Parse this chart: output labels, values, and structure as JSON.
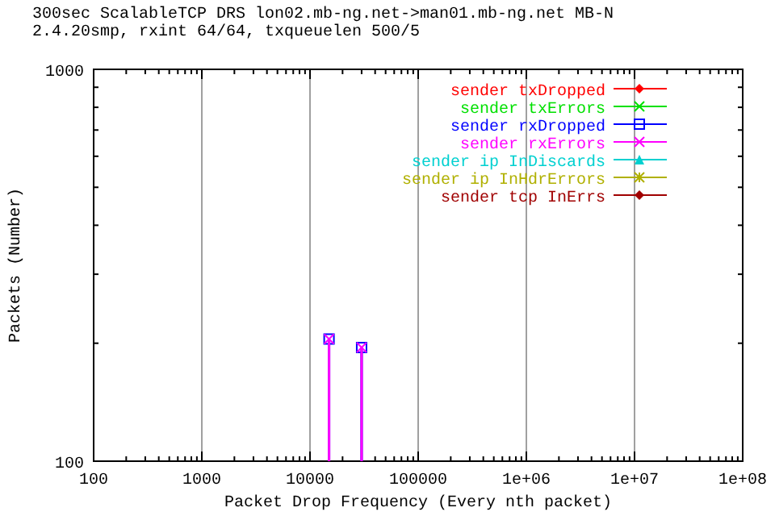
{
  "chart_data": {
    "type": "lollipop",
    "title": "300sec ScalableTCP DRS lon02.mb-ng.net->man01.mb-ng.net MB-N",
    "subtitle": "2.4.20smp, rxint 64/64, txqueuelen 500/5",
    "xlabel": "Packet Drop Frequency (Every nth packet)",
    "ylabel": "Packets (Number)",
    "log": "xy",
    "xlim": [
      100,
      100000000
    ],
    "ylim": [
      100,
      1000
    ],
    "xticks": [
      100,
      1000,
      10000,
      100000,
      {
        "value": 1000000,
        "label": "1e+06"
      },
      {
        "value": 10000000,
        "label": "1e+07"
      },
      {
        "value": 100000000,
        "label": "1e+08"
      }
    ],
    "yticks": [
      100,
      1000
    ],
    "grid": "x",
    "legend": "top right",
    "x": [
      15000,
      30000
    ],
    "series": [
      {
        "name": "sender txDropped",
        "color": "#ff0000",
        "marker": "diamond",
        "values": [
          null,
          null
        ]
      },
      {
        "name": "sender txErrors",
        "color": "#00e000",
        "marker": "cross",
        "values": [
          null,
          null
        ]
      },
      {
        "name": "sender rxDropped",
        "color": "#0000ff",
        "marker": "square",
        "values": [
          205,
          195
        ]
      },
      {
        "name": "sender rxErrors",
        "color": "#ff00ff",
        "marker": "cross",
        "values": [
          205,
          195
        ]
      },
      {
        "name": "sender ip InDiscards",
        "color": "#00d0d0",
        "marker": "triangle",
        "values": [
          null,
          null
        ]
      },
      {
        "name": "sender ip InHdrErrors",
        "color": "#b0b000",
        "marker": "star",
        "values": [
          null,
          null
        ]
      },
      {
        "name": "sender tcp InErrs",
        "color": "#a00000",
        "marker": "diamond",
        "values": [
          null,
          null
        ]
      }
    ]
  }
}
